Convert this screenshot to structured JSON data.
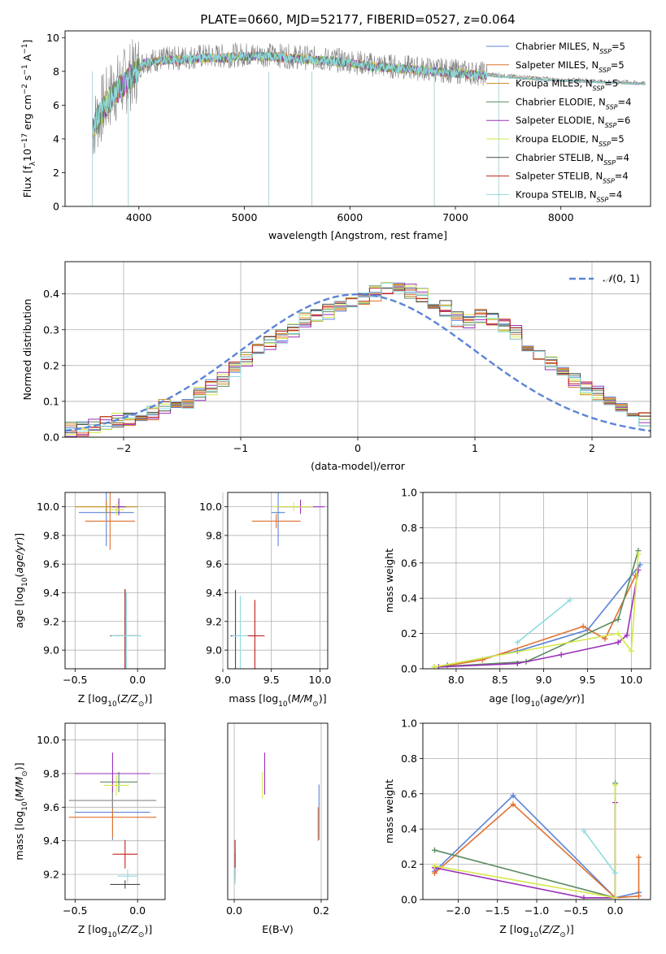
{
  "title": "PLATE=0660, MJD=52177, FIBERID=0527, z=0.064",
  "models": [
    {
      "name": "Chabrier MILES, N$_{SSP}$=5",
      "label": "Chabrier MILES, N",
      "sub": "SSP",
      "tail": "=5",
      "color": "#5b84d6"
    },
    {
      "name": "Salpeter MILES",
      "label": "Salpeter MILES, N",
      "sub": "SSP",
      "tail": "=5",
      "color": "#e0712f"
    },
    {
      "name": "Kroupa MILES",
      "label": "Kroupa MILES, N",
      "sub": "SSP",
      "tail": "=5",
      "color": "#c88a1e"
    },
    {
      "name": "Chabrier ELODIE",
      "label": "Chabrier ELODIE, N",
      "sub": "SSP",
      "tail": "=4",
      "color": "#5b8a60"
    },
    {
      "name": "Salpeter ELODIE",
      "label": "Salpeter ELODIE, N",
      "sub": "SSP",
      "tail": "=6",
      "color": "#9b30b8"
    },
    {
      "name": "Kroupa ELODIE",
      "label": "Kroupa ELODIE, N",
      "sub": "SSP",
      "tail": "=5",
      "color": "#d4e84a"
    },
    {
      "name": "Chabrier STELIB",
      "label": "Chabrier STELIB, N",
      "sub": "SSP",
      "tail": "=4",
      "color": "#4a4a4a"
    },
    {
      "name": "Salpeter STELIB",
      "label": "Salpeter STELIB, N",
      "sub": "SSP",
      "tail": "=4",
      "color": "#c0231e"
    },
    {
      "name": "Kroupa STELIB",
      "label": "Kroupa STELIB, N",
      "sub": "SSP",
      "tail": "=4",
      "color": "#8fdce0"
    }
  ],
  "chart_data": [
    {
      "type": "line",
      "panel": "spectrum",
      "xlabel": "wavelength [Angstrom, rest frame]",
      "ylabel_main": "Flux [f",
      "ylabel_full": "Flux [f_λ 10^-17 erg cm^-2 s^-1 A^-1]",
      "xlim": [
        3300,
        8850
      ],
      "ylim": [
        0,
        10.4
      ],
      "xticks": [
        4000,
        5000,
        6000,
        7000,
        8000
      ],
      "yticks": [
        0,
        2,
        4,
        6,
        8,
        10
      ],
      "series": [
        {
          "name": "data",
          "color": "#808080",
          "x": [
            3560,
            3650,
            3750,
            3850,
            3950,
            4050,
            4200,
            4400,
            4600,
            4800,
            5000,
            5200,
            5400,
            5600,
            5800,
            6000,
            6200,
            6400,
            6600,
            6800,
            7000,
            7200,
            7400,
            7600,
            7800,
            8000,
            8200,
            8400,
            8600,
            8800
          ],
          "y": [
            4.6,
            5.8,
            6.8,
            7.3,
            7.9,
            8.6,
            8.7,
            8.8,
            8.9,
            8.9,
            9.0,
            9.0,
            8.9,
            8.8,
            8.7,
            8.6,
            8.4,
            8.3,
            8.2,
            8.1,
            8.0,
            7.9,
            7.8,
            7.7,
            7.6,
            7.5,
            7.5,
            7.4,
            7.4,
            7.3
          ]
        },
        {
          "name": "Kroupa STELIB model",
          "color": "#6fd6d8",
          "x": [
            3560,
            3650,
            3750,
            3850,
            3950,
            4050,
            4200,
            4400,
            4600,
            4800,
            5000,
            5200,
            5400,
            5600,
            5800,
            6000,
            6200,
            6400,
            6600,
            6800,
            7000,
            7200,
            7400,
            7600,
            7800,
            8000,
            8200,
            8400,
            8600,
            8800
          ],
          "y": [
            4.7,
            5.6,
            6.6,
            7.2,
            7.8,
            8.5,
            8.6,
            8.7,
            8.8,
            8.8,
            8.9,
            8.9,
            8.8,
            8.7,
            8.6,
            8.5,
            8.3,
            8.2,
            8.1,
            8.0,
            7.9,
            7.8,
            7.7,
            7.6,
            7.5,
            7.45,
            7.4,
            7.35,
            7.3,
            7.25
          ]
        }
      ]
    },
    {
      "type": "line",
      "panel": "residual-histogram",
      "xlabel": "(data-model)/error",
      "ylabel": "Normed distribution",
      "xlim": [
        -2.5,
        2.5
      ],
      "ylim": [
        0,
        0.49
      ],
      "xticks": [
        -2,
        -1,
        0,
        1,
        2
      ],
      "yticks": [
        0.0,
        0.1,
        0.2,
        0.3,
        0.4
      ],
      "legend": "$\\mathcal{N}(0,1)$",
      "bin_width": 0.1,
      "series": [
        {
          "name": "histogram",
          "values": [
            0.02,
            0.025,
            0.03,
            0.04,
            0.045,
            0.05,
            0.06,
            0.07,
            0.085,
            0.09,
            0.1,
            0.12,
            0.14,
            0.16,
            0.19,
            0.22,
            0.24,
            0.26,
            0.28,
            0.3,
            0.33,
            0.34,
            0.35,
            0.36,
            0.37,
            0.39,
            0.4,
            0.41,
            0.42,
            0.41,
            0.4,
            0.38,
            0.36,
            0.33,
            0.32,
            0.34,
            0.33,
            0.31,
            0.29,
            0.26,
            0.23,
            0.21,
            0.19,
            0.16,
            0.14,
            0.12,
            0.1,
            0.08,
            0.06,
            0.05
          ]
        }
      ]
    },
    {
      "type": "scatter",
      "panel": "age-vs-Z",
      "xlabel": "Z [log10(Z/Z⊙)]",
      "ylabel": "age  [log10(age/yr)]",
      "xlim": [
        -0.58,
        0.22
      ],
      "ylim": [
        8.87,
        10.1
      ],
      "xticks": [
        -0.5,
        0.0
      ],
      "yticks": [
        9.0,
        9.2,
        9.4,
        9.6,
        9.8,
        10.0
      ],
      "points": [
        {
          "model": 0,
          "x": -0.25,
          "y": 9.96,
          "dx": 0.22,
          "dy": 0.47
        },
        {
          "model": 1,
          "x": -0.22,
          "y": 9.9,
          "dx": 0.2,
          "dy": 0.4
        },
        {
          "model": 2,
          "x": -0.25,
          "y": 10.0,
          "dx": 0.25,
          "dy": 0.1
        },
        {
          "model": 3,
          "x": -0.15,
          "y": 10.0,
          "dx": 0.06,
          "dy": 0.1
        },
        {
          "model": 4,
          "x": -0.15,
          "y": 10.0,
          "dx": 0.05,
          "dy": 0.12
        },
        {
          "model": 5,
          "x": -0.17,
          "y": 9.98,
          "dx": 0.06,
          "dy": 0.08
        },
        {
          "model": 6,
          "x": -0.1,
          "y": 9.1,
          "dx": 0.12,
          "dy": 0.65
        },
        {
          "model": 7,
          "x": -0.1,
          "y": 9.1,
          "dx": 0.08,
          "dy": 0.65
        },
        {
          "model": 8,
          "x": -0.09,
          "y": 9.1,
          "dx": 0.12,
          "dy": 0.6
        }
      ]
    },
    {
      "type": "scatter",
      "panel": "age-vs-mass",
      "xlabel": "mass [log10(M/M⊙)]",
      "xlim": [
        9.05,
        10.08
      ],
      "ylim": [
        8.87,
        10.1
      ],
      "xticks": [
        9.0,
        9.5,
        10.0
      ],
      "yticks": [
        9.0,
        9.2,
        9.4,
        9.6,
        9.8,
        10.0
      ],
      "points": [
        {
          "model": 0,
          "x": 9.57,
          "y": 9.96,
          "dx": 0.07,
          "dy": 0.47
        },
        {
          "model": 1,
          "x": 9.55,
          "y": 9.9,
          "dx": 0.25,
          "dy": 0.1
        },
        {
          "model": 4,
          "x": 9.8,
          "y": 10.0,
          "dx": 0.25,
          "dy": 0.1
        },
        {
          "model": 5,
          "x": 9.73,
          "y": 10.0,
          "dx": 0.2,
          "dy": 0.06
        },
        {
          "model": 6,
          "x": 9.13,
          "y": 9.1,
          "dx": 0.05,
          "dy": 0.64
        },
        {
          "model": 7,
          "x": 9.33,
          "y": 9.1,
          "dx": 0.1,
          "dy": 0.5
        },
        {
          "model": 8,
          "x": 9.18,
          "y": 9.1,
          "dx": 0.08,
          "dy": 0.56
        }
      ]
    },
    {
      "type": "line",
      "panel": "mass-weight-vs-age",
      "xlabel": "age  [log10(age/yr)]",
      "ylabel": "mass weight",
      "xlim": [
        7.62,
        10.22
      ],
      "ylim": [
        0,
        1.0
      ],
      "xticks": [
        8.0,
        8.5,
        9.0,
        9.5,
        10.0
      ],
      "yticks": [
        0.0,
        0.2,
        0.4,
        0.6,
        0.8,
        1.0
      ],
      "series": [
        {
          "model": 0,
          "x": [
            7.9,
            8.7,
            9.5,
            10.1
          ],
          "y": [
            0.02,
            0.1,
            0.22,
            0.59
          ]
        },
        {
          "model": 1,
          "x": [
            7.8,
            8.3,
            9.45,
            9.7,
            10.05
          ],
          "y": [
            0.01,
            0.05,
            0.24,
            0.17,
            0.53
          ]
        },
        {
          "model": 3,
          "x": [
            7.75,
            8.8,
            9.85,
            10.08
          ],
          "y": [
            0.01,
            0.04,
            0.28,
            0.67
          ]
        },
        {
          "model": 4,
          "x": [
            7.8,
            8.7,
            9.2,
            9.85,
            9.95,
            10.08
          ],
          "y": [
            0.01,
            0.03,
            0.08,
            0.15,
            0.19,
            0.56
          ]
        },
        {
          "model": 5,
          "x": [
            7.75,
            9.85,
            10.0,
            10.08
          ],
          "y": [
            0.01,
            0.2,
            0.1,
            0.65
          ]
        },
        {
          "model": 8,
          "x": [
            8.7,
            9.3
          ],
          "y": [
            0.15,
            0.39
          ]
        }
      ]
    },
    {
      "type": "scatter",
      "panel": "mass-vs-Z",
      "xlabel": "Z [log10(Z/Z⊙)]",
      "ylabel": "mass [log10(M/M⊙)]",
      "xlim": [
        -0.58,
        0.22
      ],
      "ylim": [
        9.05,
        10.1
      ],
      "xticks": [
        -0.5,
        0.0
      ],
      "yticks": [
        9.2,
        9.4,
        9.6,
        9.8,
        10.0
      ],
      "points": [
        {
          "model": 0,
          "x": -0.2,
          "y": 9.57,
          "dx": 0.3,
          "dy": 0.33
        },
        {
          "model": 1,
          "x": -0.2,
          "y": 9.54,
          "dx": 0.35,
          "dy": 0.25
        },
        {
          "model": 3,
          "x": -0.15,
          "y": 9.75,
          "dx": 0.15,
          "dy": 0.12
        },
        {
          "model": 4,
          "x": -0.2,
          "y": 9.8,
          "dx": 0.3,
          "dy": 0.25
        },
        {
          "model": 5,
          "x": -0.17,
          "y": 9.73,
          "dx": 0.1,
          "dy": 0.12
        },
        {
          "model": 6,
          "x": -0.1,
          "y": 9.14,
          "dx": 0.12,
          "dy": 0.05
        },
        {
          "model": 7,
          "x": -0.1,
          "y": 9.32,
          "dx": 0.1,
          "dy": 0.17
        },
        {
          "model": 8,
          "x": -0.08,
          "y": 9.19,
          "dx": 0.08,
          "dy": 0.08
        },
        {
          "model": 9,
          "x": -0.2,
          "y": 9.64,
          "dx": 0.35,
          "dy": 0.1
        }
      ]
    },
    {
      "type": "scatter",
      "panel": "mass-vs-EBV",
      "xlabel": "E(B-V)",
      "xlim": [
        -0.015,
        0.215
      ],
      "ylim": [
        9.05,
        10.1
      ],
      "xticks": [
        0.0,
        0.2
      ],
      "points": [
        {
          "model": 0,
          "x": 0.195,
          "y": 9.57,
          "dx": 0.001,
          "dy": 0.33
        },
        {
          "model": 1,
          "x": 0.193,
          "y": 9.5,
          "dx": 0.001,
          "dy": 0.2
        },
        {
          "model": 4,
          "x": 0.07,
          "y": 9.8,
          "dx": 0.001,
          "dy": 0.25
        },
        {
          "model": 5,
          "x": 0.065,
          "y": 9.73,
          "dx": 0.001,
          "dy": 0.16
        },
        {
          "model": 6,
          "x": 0.002,
          "y": 9.25,
          "dx": 0.001,
          "dy": 0.15
        },
        {
          "model": 7,
          "x": 0.002,
          "y": 9.32,
          "dx": 0.001,
          "dy": 0.17
        },
        {
          "model": 8,
          "x": 0.002,
          "y": 9.19,
          "dx": 0.001,
          "dy": 0.1
        }
      ]
    },
    {
      "type": "line",
      "panel": "mass-weight-vs-Z",
      "xlabel": "Z [log10(Z/Z⊙)]",
      "ylabel": "mass weight",
      "xlim": [
        -2.45,
        0.45
      ],
      "ylim": [
        0,
        1.0
      ],
      "xticks": [
        -2.0,
        -1.5,
        -1.0,
        -0.5,
        0.0
      ],
      "yticks": [
        0.0,
        0.2,
        0.4,
        0.6,
        0.8,
        1.0
      ],
      "series": [
        {
          "model": 0,
          "x": [
            -2.3,
            -1.3,
            0.0,
            0.3
          ],
          "y": [
            0.16,
            0.59,
            0.01,
            0.04
          ]
        },
        {
          "model": 1,
          "x": [
            -2.3,
            -1.3,
            0.0,
            0.3,
            0.3
          ],
          "y": [
            0.15,
            0.54,
            0.01,
            0.02,
            0.24
          ]
        },
        {
          "model": 3,
          "x": [
            -2.3,
            0.0,
            0.0
          ],
          "y": [
            0.28,
            0.01,
            0.66
          ]
        },
        {
          "model": 4,
          "x": [
            -2.3,
            -0.4,
            0.0,
            0.0
          ],
          "y": [
            0.18,
            0.01,
            0.01,
            0.55
          ]
        },
        {
          "model": 5,
          "x": [
            -2.3,
            0.0,
            0.0
          ],
          "y": [
            0.19,
            0.01,
            0.65
          ]
        },
        {
          "model": 8,
          "x": [
            -0.4,
            0.0
          ],
          "y": [
            0.39,
            0.15
          ]
        }
      ]
    }
  ]
}
